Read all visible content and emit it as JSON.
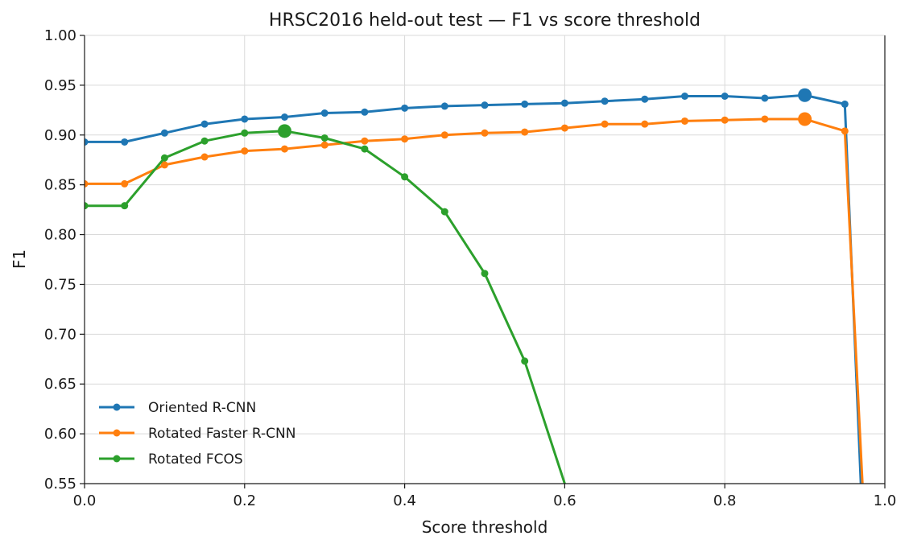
{
  "chart_data": {
    "type": "line",
    "title": "HRSC2016 held-out test — F1 vs score threshold",
    "xlabel": "Score threshold",
    "ylabel": "F1",
    "xlim": [
      0.0,
      1.0
    ],
    "ylim": [
      0.55,
      1.0
    ],
    "x_ticks": [
      "0.0",
      "0.2",
      "0.4",
      "0.6",
      "0.8",
      "1.0"
    ],
    "y_ticks": [
      "0.55",
      "0.60",
      "0.65",
      "0.70",
      "0.75",
      "0.80",
      "0.85",
      "0.90",
      "0.95",
      "1.00"
    ],
    "grid": true,
    "legend_position": "lower-left",
    "series": [
      {
        "name": "Oriented R-CNN",
        "color": "#1f77b4",
        "x": [
          0.0,
          0.05,
          0.1,
          0.15,
          0.2,
          0.25,
          0.3,
          0.35,
          0.4,
          0.45,
          0.5,
          0.55,
          0.6,
          0.65,
          0.7,
          0.75,
          0.8,
          0.85,
          0.9,
          0.95,
          0.97
        ],
        "y": [
          0.893,
          0.893,
          0.902,
          0.911,
          0.916,
          0.918,
          0.922,
          0.923,
          0.927,
          0.929,
          0.93,
          0.931,
          0.932,
          0.934,
          0.936,
          0.939,
          0.939,
          0.937,
          0.94,
          0.931,
          0.55
        ],
        "markers": [
          true,
          true,
          true,
          true,
          true,
          true,
          true,
          true,
          true,
          true,
          true,
          true,
          true,
          true,
          true,
          true,
          true,
          true,
          true,
          true,
          false
        ],
        "best_index": 18
      },
      {
        "name": "Rotated Faster R-CNN",
        "color": "#ff7f0e",
        "x": [
          0.0,
          0.05,
          0.1,
          0.15,
          0.2,
          0.25,
          0.3,
          0.35,
          0.4,
          0.45,
          0.5,
          0.55,
          0.6,
          0.65,
          0.7,
          0.75,
          0.8,
          0.85,
          0.9,
          0.95,
          0.972
        ],
        "y": [
          0.851,
          0.851,
          0.87,
          0.878,
          0.884,
          0.886,
          0.89,
          0.894,
          0.896,
          0.9,
          0.902,
          0.903,
          0.907,
          0.911,
          0.911,
          0.914,
          0.915,
          0.916,
          0.916,
          0.904,
          0.55
        ],
        "markers": [
          true,
          true,
          true,
          true,
          true,
          true,
          true,
          true,
          true,
          true,
          true,
          true,
          true,
          true,
          true,
          true,
          true,
          true,
          true,
          true,
          false
        ],
        "best_index": 18
      },
      {
        "name": "Rotated FCOS",
        "color": "#2ca02c",
        "x": [
          0.0,
          0.05,
          0.1,
          0.15,
          0.2,
          0.25,
          0.3,
          0.35,
          0.4,
          0.45,
          0.5,
          0.55,
          0.6
        ],
        "y": [
          0.829,
          0.829,
          0.877,
          0.894,
          0.902,
          0.904,
          0.897,
          0.886,
          0.858,
          0.823,
          0.761,
          0.673,
          0.55
        ],
        "markers": [
          true,
          true,
          true,
          true,
          true,
          true,
          true,
          true,
          true,
          true,
          true,
          true,
          false
        ],
        "best_index": 5
      }
    ]
  }
}
